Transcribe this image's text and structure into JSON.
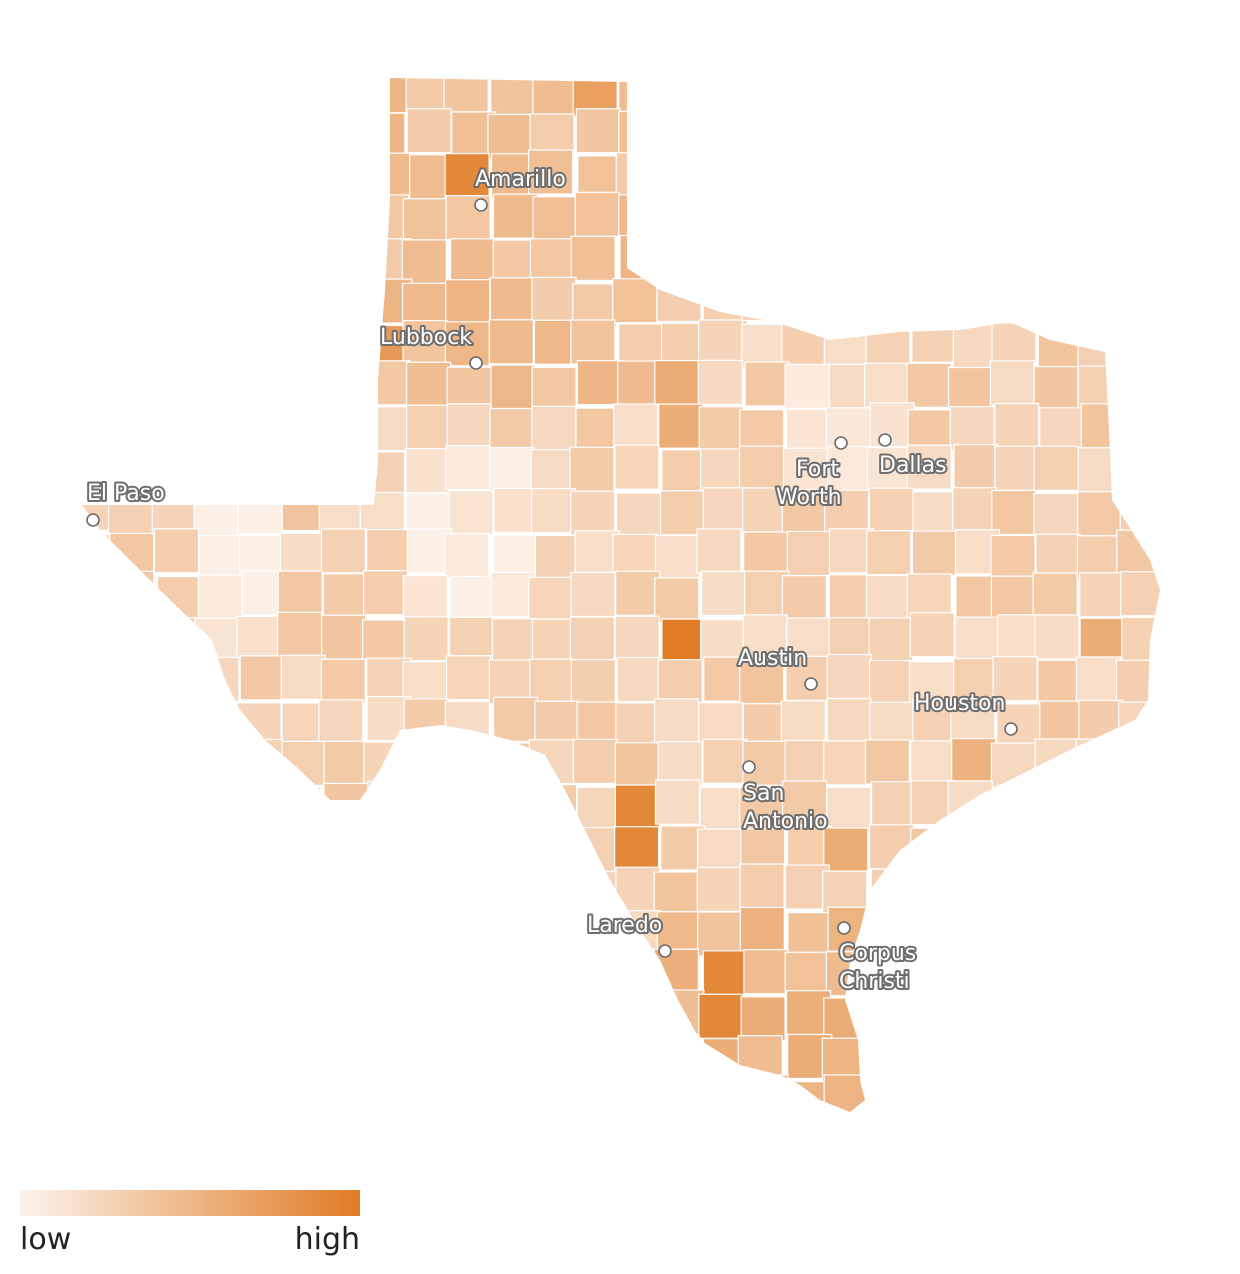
{
  "map": {
    "region": "Texas",
    "type": "choropleth",
    "scale": {
      "from_color": "#fdf3ec",
      "to_color": "#e07c25"
    },
    "cities": [
      {
        "name_lines": [
          "Amarillo"
        ]
      },
      {
        "name_lines": [
          "Lubbock"
        ]
      },
      {
        "name_lines": [
          "El Paso"
        ]
      },
      {
        "name_lines": [
          "Fort",
          "Worth"
        ]
      },
      {
        "name_lines": [
          "Dallas"
        ]
      },
      {
        "name_lines": [
          "Austin"
        ]
      },
      {
        "name_lines": [
          "Houston"
        ]
      },
      {
        "name_lines": [
          "San",
          "Antonio"
        ]
      },
      {
        "name_lines": [
          "Laredo"
        ]
      },
      {
        "name_lines": [
          "Corpus",
          "Christi"
        ]
      }
    ]
  },
  "legend": {
    "low_label": "low",
    "high_label": "high"
  }
}
